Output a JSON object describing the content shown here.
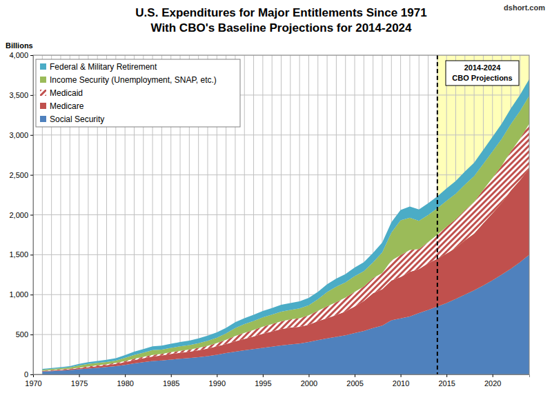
{
  "chart_data": {
    "type": "area",
    "stacked": true,
    "title": "U.S. Expenditures for Major Entitlements Since 1971",
    "subtitle": "With CBO's Baseline Projections for 2014-2024",
    "source": "dshort.com",
    "y_label": "Billions",
    "x": [
      1971,
      1972,
      1973,
      1974,
      1975,
      1976,
      1977,
      1978,
      1979,
      1980,
      1981,
      1982,
      1983,
      1984,
      1985,
      1986,
      1987,
      1988,
      1989,
      1990,
      1991,
      1992,
      1993,
      1994,
      1995,
      1996,
      1997,
      1998,
      1999,
      2000,
      2001,
      2002,
      2003,
      2004,
      2005,
      2006,
      2007,
      2008,
      2009,
      2010,
      2011,
      2012,
      2013,
      2014,
      2015,
      2016,
      2017,
      2018,
      2019,
      2020,
      2021,
      2022,
      2023,
      2024
    ],
    "series": [
      {
        "name": "Social Security",
        "color": "#4f81bd",
        "values": [
          36,
          40,
          48,
          55,
          64,
          73,
          83,
          92,
          103,
          118,
          138,
          154,
          169,
          176,
          186,
          197,
          205,
          217,
          230,
          246,
          267,
          285,
          302,
          317,
          333,
          347,
          362,
          376,
          387,
          406,
          430,
          452,
          471,
          491,
          519,
          544,
          581,
          612,
          678,
          701,
          725,
          768,
          808,
          850,
          895,
          945,
          1000,
          1055,
          1115,
          1180,
          1250,
          1325,
          1405,
          1500
        ]
      },
      {
        "name": "Medicare",
        "color": "#c0504d",
        "values": [
          7,
          8,
          9,
          11,
          14,
          17,
          21,
          24,
          29,
          35,
          42,
          50,
          56,
          62,
          70,
          74,
          80,
          85,
          94,
          107,
          114,
          129,
          143,
          159,
          177,
          191,
          207,
          211,
          209,
          216,
          237,
          253,
          274,
          297,
          333,
          376,
          436,
          456,
          499,
          520,
          560,
          551,
          585,
          600,
          620,
          640,
          680,
          710,
          780,
          840,
          900,
          980,
          1030,
          1080
        ]
      },
      {
        "name": "Medicaid",
        "color": "#c0504d",
        "values": [
          3,
          5,
          5,
          6,
          7,
          9,
          10,
          11,
          12,
          14,
          17,
          17,
          19,
          20,
          23,
          25,
          27,
          31,
          35,
          41,
          53,
          68,
          76,
          82,
          89,
          92,
          96,
          101,
          108,
          118,
          130,
          148,
          161,
          176,
          182,
          181,
          191,
          201,
          251,
          273,
          275,
          251,
          265,
          301,
          336,
          358,
          378,
          398,
          418,
          443,
          466,
          490,
          520,
          560
        ]
      },
      {
        "name": "Income Security (Unemployment, SNAP, etc.)",
        "color": "#9bbb59",
        "values": [
          13,
          16,
          15,
          17,
          27,
          32,
          30,
          28,
          29,
          40,
          47,
          52,
          60,
          52,
          53,
          55,
          55,
          58,
          63,
          67,
          80,
          100,
          109,
          111,
          116,
          120,
          122,
          120,
          123,
          127,
          144,
          179,
          194,
          190,
          197,
          193,
          196,
          260,
          350,
          437,
          404,
          355,
          340,
          330,
          325,
          320,
          320,
          320,
          325,
          330,
          335,
          340,
          345,
          350
        ]
      },
      {
        "name": "Federal & Military Retirement",
        "color": "#4bacc6",
        "values": [
          10,
          11,
          13,
          15,
          19,
          22,
          25,
          28,
          31,
          35,
          41,
          45,
          49,
          50,
          52,
          54,
          56,
          60,
          64,
          67,
          70,
          72,
          75,
          78,
          80,
          82,
          85,
          86,
          88,
          91,
          94,
          97,
          100,
          104,
          109,
          113,
          118,
          124,
          129,
          130,
          139,
          142,
          146,
          150,
          155,
          160,
          165,
          170,
          177,
          184,
          190,
          197,
          204,
          210
        ]
      }
    ],
    "xlim": [
      1970,
      2024
    ],
    "xticks": [
      1970,
      1975,
      1980,
      1985,
      1990,
      1995,
      2000,
      2005,
      2010,
      2015,
      2020
    ],
    "ylim": [
      0,
      4000
    ],
    "yticks": [
      0,
      500,
      {
        "value": 1000,
        "label": "1,000"
      },
      {
        "value": 1500,
        "label": "1,500"
      },
      {
        "value": 2000,
        "label": "2,000"
      },
      {
        "value": 2500,
        "label": "2,500"
      },
      {
        "value": 3000,
        "label": "3,000"
      },
      {
        "value": 3500,
        "label": "3,500"
      },
      {
        "value": 4000,
        "label": "4,000"
      }
    ],
    "grid": true,
    "legend": "upper left",
    "annotations": [
      {
        "x": 2014,
        "lines": [
          "2014-2024",
          "CBO Projections"
        ]
      }
    ]
  }
}
